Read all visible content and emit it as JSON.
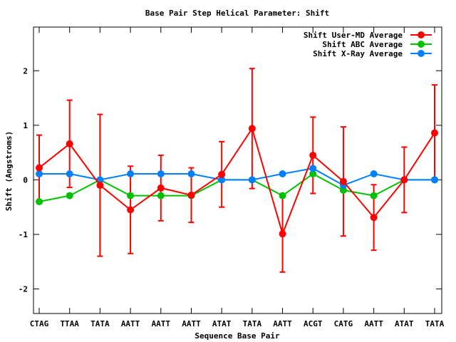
{
  "chart_data": {
    "type": "line",
    "title": "Base Pair Step Helical Parameter: Shift",
    "xlabel": "Sequence Base Pair",
    "ylabel": "Shift (Angstroms)",
    "categories": [
      "CTAG",
      "TTAA",
      "TATA",
      "AATT",
      "AATT",
      "AATT",
      "ATAT",
      "TATA",
      "AATT",
      "ACGT",
      "CATG",
      "AATT",
      "ATAT",
      "TATA"
    ],
    "ylim": [
      -2.45,
      2.8
    ],
    "yticks": [
      -2,
      -1,
      0,
      1,
      2
    ],
    "grid": false,
    "legend_position": "top-right",
    "series": [
      {
        "name": "Shift User-MD Average",
        "color": "#ff0000",
        "values": [
          0.22,
          0.66,
          -0.1,
          -0.55,
          -0.15,
          -0.28,
          0.1,
          0.94,
          -0.99,
          0.45,
          -0.03,
          -0.69,
          0.0,
          0.86
        ],
        "error": [
          0.6,
          0.8,
          1.3,
          0.8,
          0.6,
          0.5,
          0.6,
          1.1,
          0.7,
          0.7,
          1.0,
          0.6,
          0.6,
          0.88
        ]
      },
      {
        "name": "Shift ABC Average",
        "color": "#00c000",
        "values": [
          -0.4,
          -0.29,
          0.0,
          -0.29,
          -0.29,
          -0.29,
          0.0,
          0.0,
          -0.29,
          0.11,
          -0.19,
          -0.29,
          0.0,
          0.0
        ]
      },
      {
        "name": "Shift X-Ray Average",
        "color": "#0080ff",
        "values": [
          0.11,
          0.11,
          0.0,
          0.11,
          0.11,
          0.11,
          0.0,
          0.0,
          0.11,
          0.21,
          -0.1,
          0.11,
          0.0,
          0.0
        ]
      }
    ]
  }
}
